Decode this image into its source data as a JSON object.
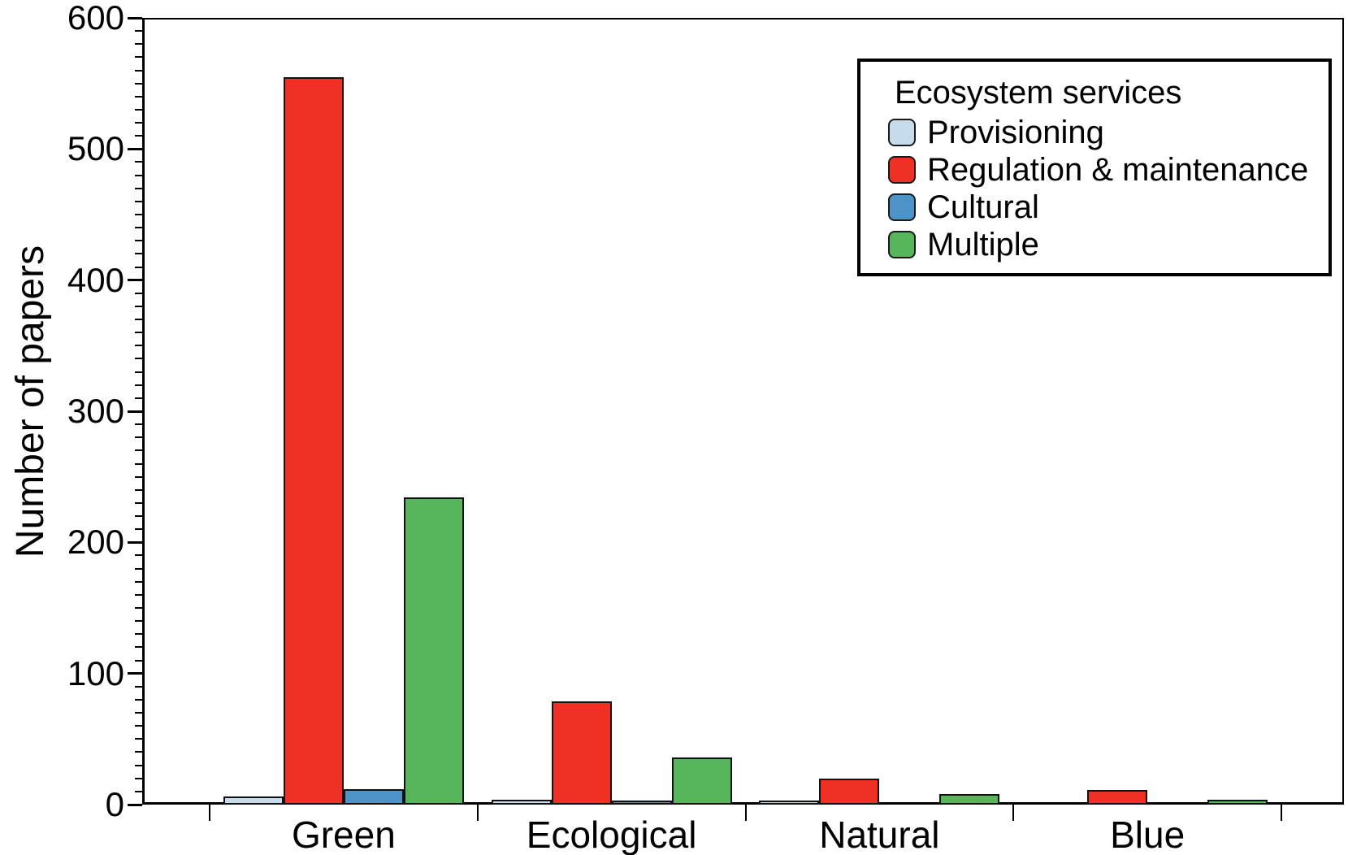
{
  "chart_data": {
    "type": "bar",
    "title": "",
    "xlabel": "",
    "ylabel": "Number of papers",
    "ylim": [
      0,
      600
    ],
    "y_ticks": [
      0,
      100,
      200,
      300,
      400,
      500,
      600
    ],
    "y_minor_step": 10,
    "grid": false,
    "categories": [
      "Green",
      "Ecological",
      "Natural",
      "Blue"
    ],
    "series": [
      {
        "name": "Provisioning",
        "color": "#c6dcec",
        "values": [
          6,
          4,
          3,
          0
        ]
      },
      {
        "name": "Regulation & maintenance",
        "color": "#ee3124",
        "values": [
          555,
          79,
          20,
          11
        ]
      },
      {
        "name": "Cultural",
        "color": "#4d93c8",
        "values": [
          12,
          3,
          0,
          0
        ]
      },
      {
        "name": "Multiple",
        "color": "#57b65b",
        "values": [
          234,
          36,
          8,
          4
        ]
      }
    ],
    "legend": {
      "title": "Ecosystem services",
      "position": "top-right"
    }
  }
}
